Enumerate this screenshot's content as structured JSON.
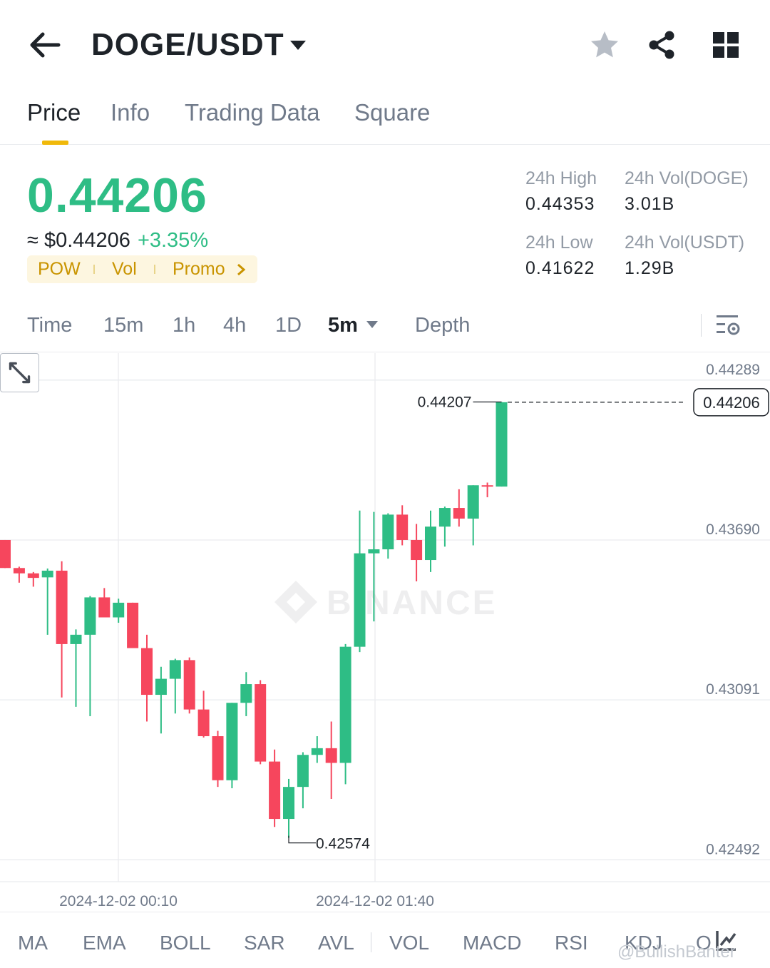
{
  "header": {
    "pair": "DOGE/USDT",
    "icons": [
      "back-arrow-icon",
      "caret-down-icon",
      "star-icon",
      "share-icon",
      "grid-icon"
    ]
  },
  "tabs": [
    {
      "label": "Price",
      "active": true
    },
    {
      "label": "Info",
      "active": false
    },
    {
      "label": "Trading Data",
      "active": false
    },
    {
      "label": "Square",
      "active": false
    }
  ],
  "ticker": {
    "last_price": "0.44206",
    "usd_price": "≈ $0.44206",
    "change": "+3.35%",
    "tags": [
      "POW",
      "Vol",
      "Promo"
    ],
    "stats": {
      "high_label": "24h High",
      "high_value": "0.44353",
      "vol_doge_label": "24h Vol(DOGE)",
      "vol_doge_value": "3.01B",
      "low_label": "24h Low",
      "low_value": "0.41622",
      "vol_usdt_label": "24h Vol(USDT)",
      "vol_usdt_value": "1.29B"
    }
  },
  "intervals": {
    "items": [
      "Time",
      "15m",
      "1h",
      "4h",
      "1D",
      "5m",
      "Depth"
    ],
    "active": "5m"
  },
  "chart_data": {
    "type": "candlestick",
    "y_ticks": [
      "0.44289",
      "0.43690",
      "0.43091",
      "0.42492"
    ],
    "ylim": [
      0.4241,
      0.4439
    ],
    "x_tick_labels": [
      "2024-12-02 00:10",
      "2024-12-02 01:40"
    ],
    "last_price_label": "0.44206",
    "high_marker": "0.44207",
    "low_marker": "0.42574",
    "watermark": "BINANCE",
    "colors": {
      "up": "#2ebd85",
      "down": "#f6465d"
    },
    "candles": [
      {
        "o": 0.4369,
        "h": 0.4369,
        "l": 0.43585,
        "c": 0.43585
      },
      {
        "o": 0.43585,
        "h": 0.4359,
        "l": 0.4353,
        "c": 0.43565
      },
      {
        "o": 0.43565,
        "h": 0.4357,
        "l": 0.43515,
        "c": 0.43548
      },
      {
        "o": 0.4355,
        "h": 0.43583,
        "l": 0.43335,
        "c": 0.43575
      },
      {
        "o": 0.43575,
        "h": 0.4361,
        "l": 0.431,
        "c": 0.433
      },
      {
        "o": 0.433,
        "h": 0.43355,
        "l": 0.43065,
        "c": 0.43335
      },
      {
        "o": 0.43335,
        "h": 0.4348,
        "l": 0.4303,
        "c": 0.43475
      },
      {
        "o": 0.43475,
        "h": 0.4351,
        "l": 0.434,
        "c": 0.434
      },
      {
        "o": 0.434,
        "h": 0.4347,
        "l": 0.4338,
        "c": 0.43455
      },
      {
        "o": 0.43455,
        "h": 0.43455,
        "l": 0.43285,
        "c": 0.43285
      },
      {
        "o": 0.43285,
        "h": 0.43335,
        "l": 0.4301,
        "c": 0.4311
      },
      {
        "o": 0.4311,
        "h": 0.43215,
        "l": 0.42965,
        "c": 0.4317
      },
      {
        "o": 0.4317,
        "h": 0.43245,
        "l": 0.4304,
        "c": 0.4324
      },
      {
        "o": 0.4324,
        "h": 0.4325,
        "l": 0.4304,
        "c": 0.43055
      },
      {
        "o": 0.43055,
        "h": 0.43125,
        "l": 0.4295,
        "c": 0.42955
      },
      {
        "o": 0.42955,
        "h": 0.42975,
        "l": 0.42765,
        "c": 0.4279
      },
      {
        "o": 0.4279,
        "h": 0.4308,
        "l": 0.4276,
        "c": 0.4308
      },
      {
        "o": 0.4308,
        "h": 0.43195,
        "l": 0.4303,
        "c": 0.4315
      },
      {
        "o": 0.4315,
        "h": 0.43165,
        "l": 0.4285,
        "c": 0.4286
      },
      {
        "o": 0.4286,
        "h": 0.42905,
        "l": 0.42615,
        "c": 0.42645
      },
      {
        "o": 0.42645,
        "h": 0.42795,
        "l": 0.42574,
        "c": 0.42765
      },
      {
        "o": 0.42765,
        "h": 0.42895,
        "l": 0.42685,
        "c": 0.42885
      },
      {
        "o": 0.42885,
        "h": 0.42955,
        "l": 0.42855,
        "c": 0.4291
      },
      {
        "o": 0.4291,
        "h": 0.4301,
        "l": 0.4272,
        "c": 0.42855
      },
      {
        "o": 0.42855,
        "h": 0.433,
        "l": 0.42775,
        "c": 0.4329
      },
      {
        "o": 0.4329,
        "h": 0.438,
        "l": 0.4327,
        "c": 0.4364
      },
      {
        "o": 0.4364,
        "h": 0.43795,
        "l": 0.43385,
        "c": 0.43655
      },
      {
        "o": 0.43655,
        "h": 0.4379,
        "l": 0.4362,
        "c": 0.43785
      },
      {
        "o": 0.43785,
        "h": 0.4382,
        "l": 0.4367,
        "c": 0.4369
      },
      {
        "o": 0.4369,
        "h": 0.4375,
        "l": 0.43535,
        "c": 0.43615
      },
      {
        "o": 0.43615,
        "h": 0.438,
        "l": 0.4357,
        "c": 0.4374
      },
      {
        "o": 0.4374,
        "h": 0.43815,
        "l": 0.43665,
        "c": 0.4381
      },
      {
        "o": 0.4381,
        "h": 0.4388,
        "l": 0.4374,
        "c": 0.4377
      },
      {
        "o": 0.4377,
        "h": 0.43895,
        "l": 0.4367,
        "c": 0.43895
      },
      {
        "o": 0.43895,
        "h": 0.43905,
        "l": 0.4385,
        "c": 0.4389
      },
      {
        "o": 0.4389,
        "h": 0.44207,
        "l": 0.4389,
        "c": 0.44206
      }
    ]
  },
  "indicators": [
    "MA",
    "EMA",
    "BOLL",
    "SAR",
    "AVL",
    "VOL",
    "MACD",
    "RSI",
    "KDJ",
    "O"
  ],
  "watermark_user": "@BullishBanter"
}
